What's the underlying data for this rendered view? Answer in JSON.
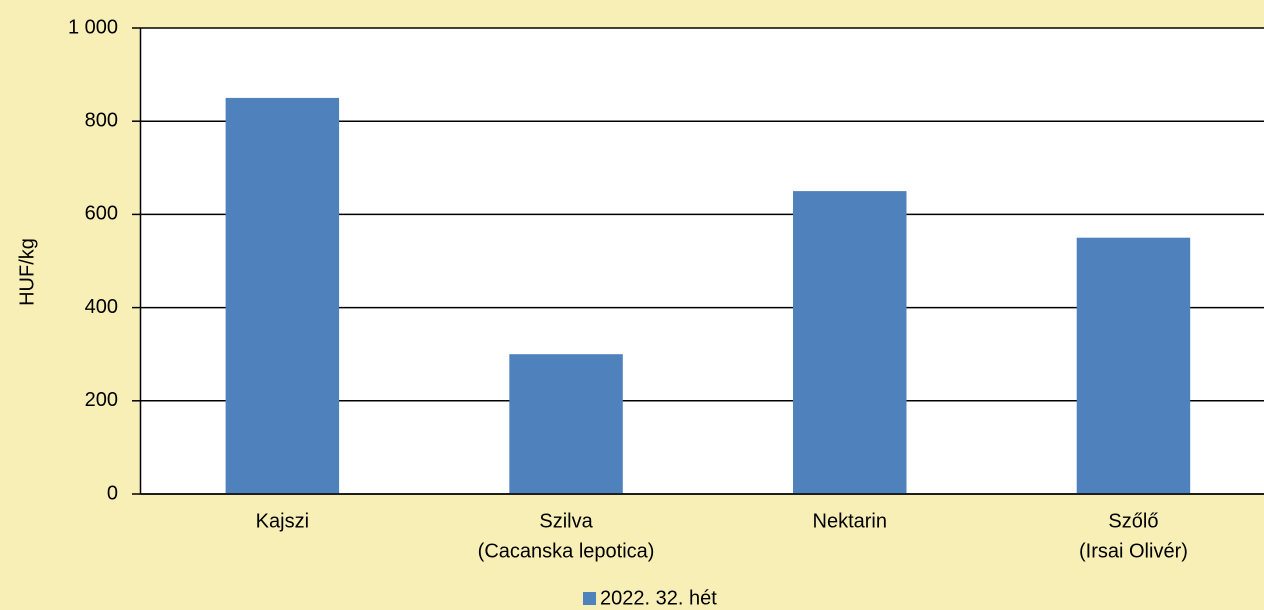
{
  "chart_data": {
    "type": "bar",
    "y_label": "HUF/kg",
    "categories": [
      [
        "Kajszi"
      ],
      [
        "Szilva",
        "(Cacanska lepotica)"
      ],
      [
        "Nektarin"
      ],
      [
        "Szőlő",
        "(Irsai Olivér)"
      ]
    ],
    "series": [
      {
        "name": "2022. 32. hét",
        "color": "#4f81bd",
        "values": [
          850,
          300,
          650,
          550
        ]
      }
    ],
    "ylim": [
      0,
      1000
    ],
    "yticks": [
      0,
      200,
      400,
      600,
      800,
      {
        "value": 1000,
        "label": "1 000"
      }
    ],
    "grid": true,
    "legend": "bottom"
  }
}
